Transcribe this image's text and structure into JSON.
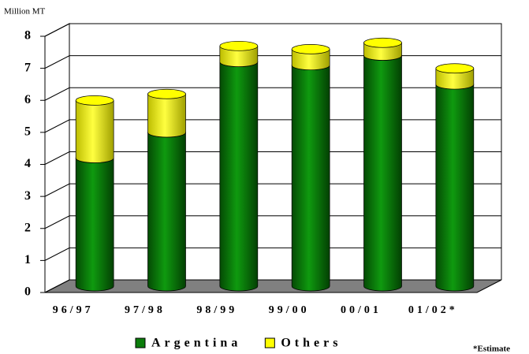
{
  "chart_data": {
    "type": "bar",
    "stacked": true,
    "y_axis_label": "Million MT",
    "note": "*Estimate",
    "categories": [
      "96/97",
      "97/98",
      "98/99",
      "99/00",
      "00/01",
      "01/02*"
    ],
    "series": [
      {
        "name": "Argentina",
        "color": "#0b7d0b",
        "values": [
          4.0,
          4.8,
          7.0,
          6.9,
          7.2,
          6.3
        ]
      },
      {
        "name": "Others",
        "color": "#ffff00",
        "values": [
          1.8,
          1.2,
          0.5,
          0.5,
          0.4,
          0.5
        ]
      }
    ],
    "ylim": [
      0,
      8
    ],
    "yticks": [
      0,
      1,
      2,
      3,
      4,
      5,
      6,
      7,
      8
    ],
    "grid": true
  }
}
